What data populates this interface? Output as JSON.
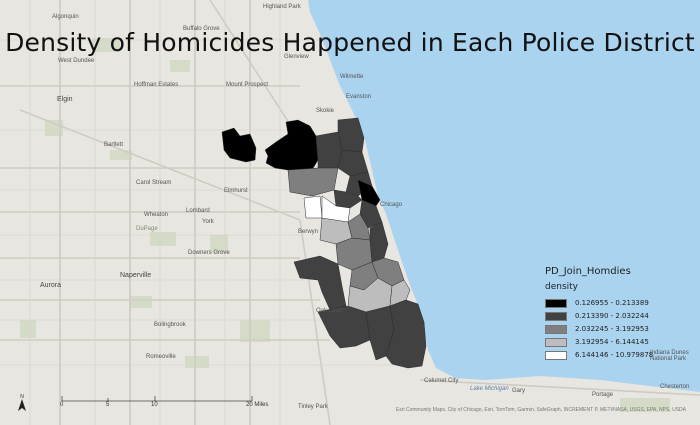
{
  "map": {
    "title": "Density of Homicides Happened in Each Police District",
    "legend": {
      "layer_name": "PD_Join_Homdies",
      "field": "density",
      "classes": [
        {
          "label": "0.126955 - 0.213389",
          "color": "#000000"
        },
        {
          "label": "0.213390 - 2.032244",
          "color": "#414141"
        },
        {
          "label": "2.032245 - 3.192953",
          "color": "#7f7f7f"
        },
        {
          "label": "3.192954 - 6.144145",
          "color": "#bdbdbd"
        },
        {
          "label": "6.144146 - 10.979878",
          "color": "#ffffff"
        }
      ]
    },
    "scale_bar": {
      "ticks": [
        "0",
        "5",
        "10",
        "20 Miles"
      ]
    },
    "north_arrow": "N",
    "attribution": "Esri Community Maps, City of Chicago, Esri, TomTom, Garmin, SafeGraph, INCREMENT P, METI/NASA, USGS, EPA, NPS, USDA",
    "places": {
      "algonquin": "Algonquin",
      "highland_park": "Highland Park",
      "buffalo_grove": "Buffalo Grove",
      "west_dundee": "West Dundee",
      "glenview": "Glenview",
      "wilmette": "Wilmette",
      "hoffman_estates": "Hoffman Estates",
      "mount_prospect": "Mount Prospect",
      "evanston": "Evanston",
      "elgin": "Elgin",
      "skokie": "Skokie",
      "bartlett": "Bartlett",
      "carol_stream": "Carol Stream",
      "elmhurst": "Elmhurst",
      "chicago": "Chicago",
      "lombard": "Lombard",
      "wheaton": "Wheaton",
      "york": "York",
      "berwyn": "Berwyn",
      "dupage": "DuPage",
      "downers_grove": "Downers Grove",
      "aurora": "Aurora",
      "naperville": "Naperville",
      "oak_lawn": "Oak Lawn",
      "bolingbrook": "Bolingbrook",
      "romeoville": "Romeoville",
      "calumet_city": "Calumet City",
      "gary": "Gary",
      "portage": "Portage",
      "chesterton": "Chesterton",
      "tinley_park": "Tinley Park",
      "indiana_dunes": "Indiana Dunes National Park",
      "lake_michigan": "Lake Michigan"
    }
  }
}
